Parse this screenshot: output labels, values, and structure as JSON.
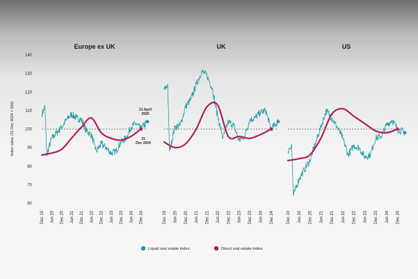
{
  "chart_data": {
    "type": "line",
    "ylabel": "Index value (31 Dec 2024 = 100)",
    "ylim": [
      60,
      140
    ],
    "yticks": [
      60,
      70,
      80,
      90,
      100,
      110,
      120,
      130,
      140
    ],
    "x_ticks": [
      "Dec 19",
      "Jun 20",
      "Dec 20",
      "Jun 21",
      "Dec 21",
      "Jun 22",
      "Dec 22",
      "Jun 23",
      "Dec 23",
      "Jun 24",
      "Dec 24"
    ],
    "reference_line": 100,
    "legend": [
      {
        "name": "Liquid real estate index",
        "color": "#1e9aa3"
      },
      {
        "name": "Direct real estate index",
        "color": "#b01c5c"
      }
    ],
    "panels": [
      {
        "title": "Europe ex UK",
        "annotations": [
          "21 April 2025",
          "31 Dec 2024"
        ],
        "series": [
          {
            "name": "Liquid real estate index",
            "x": [
              "2019-12",
              "2020-02",
              "2020-03",
              "2020-06",
              "2020-09",
              "2020-12",
              "2021-03",
              "2021-06",
              "2021-09",
              "2021-12",
              "2022-03",
              "2022-06",
              "2022-09",
              "2022-12",
              "2023-03",
              "2023-06",
              "2023-09",
              "2023-12",
              "2024-03",
              "2024-06",
              "2024-09",
              "2024-12",
              "2025-04"
            ],
            "y": [
              108,
              112,
              86,
              95,
              98,
              101,
              105,
              108,
              106,
              105,
              99,
              97,
              88,
              92,
              90,
              87,
              88,
              93,
              95,
              101,
              103,
              100,
              104
            ]
          },
          {
            "name": "Direct real estate index",
            "x": [
              "2019-12",
              "2020-06",
              "2020-12",
              "2021-06",
              "2021-12",
              "2022-06",
              "2022-12",
              "2023-06",
              "2023-12",
              "2024-06",
              "2024-12"
            ],
            "y": [
              86,
              87,
              89,
              95,
              101,
              106,
              98,
              95,
              94,
              96,
              100
            ]
          }
        ]
      },
      {
        "title": "UK",
        "annotations": [],
        "series": [
          {
            "name": "Liquid real estate index",
            "x": [
              "2019-12",
              "2020-02",
              "2020-03",
              "2020-06",
              "2020-09",
              "2020-12",
              "2021-03",
              "2021-06",
              "2021-09",
              "2021-12",
              "2022-03",
              "2022-06",
              "2022-09",
              "2022-12",
              "2023-03",
              "2023-06",
              "2023-09",
              "2023-12",
              "2024-03",
              "2024-06",
              "2024-09",
              "2024-12",
              "2025-04"
            ],
            "y": [
              121,
              124,
              88,
              101,
              102,
              112,
              116,
              124,
              131,
              129,
              122,
              107,
              95,
              104,
              102,
              94,
              96,
              105,
              106,
              109,
              110,
              100,
              104
            ]
          },
          {
            "name": "Direct real estate index",
            "x": [
              "2019-12",
              "2020-06",
              "2020-12",
              "2021-06",
              "2021-12",
              "2022-06",
              "2022-12",
              "2023-06",
              "2023-12",
              "2024-06",
              "2024-12"
            ],
            "y": [
              93,
              90,
              92,
              100,
              112,
              113,
              96,
              96,
              95,
              97,
              100
            ]
          }
        ]
      },
      {
        "title": "US",
        "annotations": [],
        "series": [
          {
            "name": "Liquid real estate index",
            "x": [
              "2019-12",
              "2020-02",
              "2020-03",
              "2020-06",
              "2020-09",
              "2020-12",
              "2021-03",
              "2021-06",
              "2021-09",
              "2021-12",
              "2022-03",
              "2022-06",
              "2022-09",
              "2022-12",
              "2023-03",
              "2023-06",
              "2023-09",
              "2023-12",
              "2024-03",
              "2024-06",
              "2024-09",
              "2024-12",
              "2025-04"
            ],
            "y": [
              88,
              92,
              64,
              73,
              78,
              83,
              92,
              101,
              110,
              106,
              101,
              95,
              86,
              91,
              90,
              85,
              86,
              95,
              96,
              102,
              105,
              100,
              98
            ]
          },
          {
            "name": "Direct real estate index",
            "x": [
              "2019-12",
              "2020-06",
              "2020-12",
              "2021-06",
              "2021-12",
              "2022-06",
              "2022-12",
              "2023-06",
              "2023-12",
              "2024-06",
              "2024-12"
            ],
            "y": [
              83,
              84,
              86,
              95,
              108,
              111,
              107,
              103,
              99,
              98,
              100
            ]
          }
        ]
      }
    ]
  }
}
